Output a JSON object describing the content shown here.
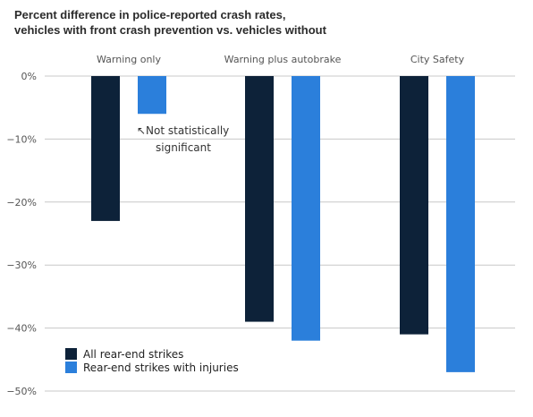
{
  "colors": {
    "series_dark": "#0d2239",
    "series_light": "#2b7fdb",
    "grid": "#c8c8c8",
    "axis_text": "#555555"
  },
  "chart_data": {
    "type": "bar",
    "title_lines": [
      "Percent difference in police-reported crash rates,",
      "vehicles with front crash prevention vs. vehicles without"
    ],
    "categories": [
      "Warning only",
      "Warning plus autobrake",
      "City Safety"
    ],
    "series": [
      {
        "name": "All rear-end strikes",
        "values": [
          -23,
          -39,
          -41
        ]
      },
      {
        "name": "Rear-end strikes with injuries",
        "values": [
          -6,
          -42,
          -47
        ]
      }
    ],
    "yticks": [
      0,
      -10,
      -20,
      -30,
      -40,
      -50
    ],
    "ytick_labels": [
      "0%",
      "−10%",
      "−20%",
      "−30%",
      "−40%",
      "−50%"
    ],
    "ylim": [
      -50,
      0
    ],
    "grid": true,
    "legend_position": "bottom-left",
    "annotation": {
      "lines": [
        "↖Not statistically",
        "significant"
      ],
      "category": "Warning only",
      "series": "Rear-end strikes with injuries"
    },
    "xlabel": "",
    "ylabel": ""
  }
}
